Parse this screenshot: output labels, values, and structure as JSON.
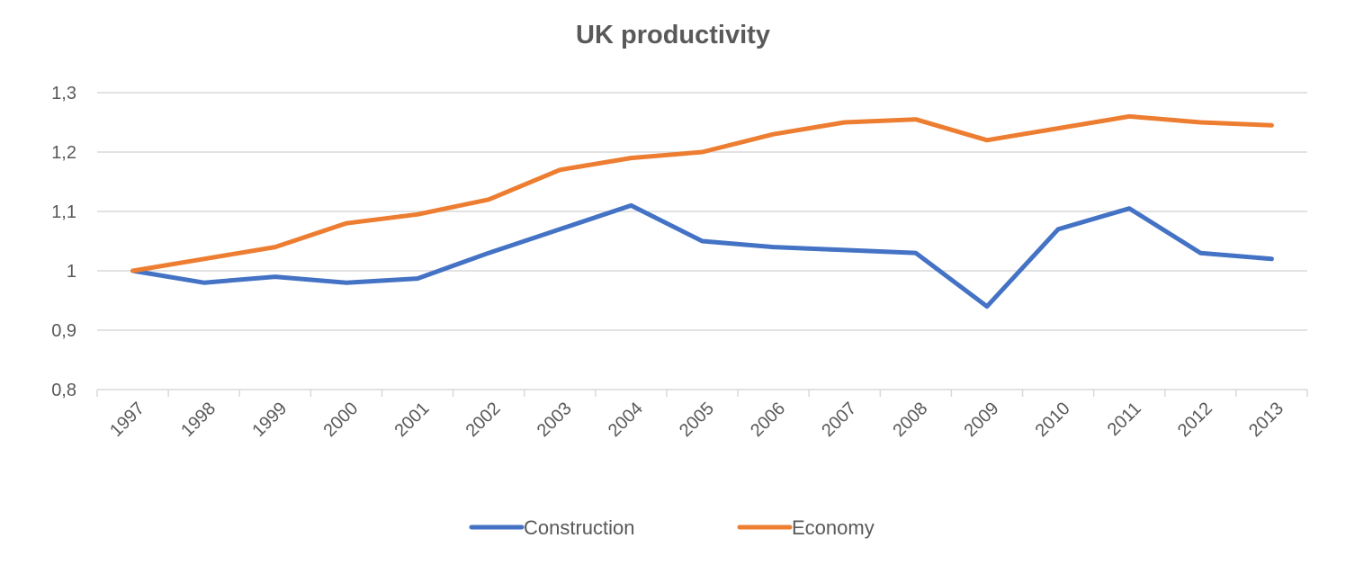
{
  "chart_data": {
    "type": "line",
    "title": "UK productivity",
    "xlabel": "",
    "ylabel": "",
    "categories": [
      "1997",
      "1998",
      "1999",
      "2000",
      "2001",
      "2002",
      "2003",
      "2004",
      "2005",
      "2006",
      "2007",
      "2008",
      "2009",
      "2010",
      "2011",
      "2012",
      "2013"
    ],
    "y_ticks": [
      0.8,
      0.9,
      1.0,
      1.1,
      1.2,
      1.3
    ],
    "y_tick_labels": [
      "0,8",
      "0,9",
      "1",
      "1,1",
      "1,2",
      "1,3"
    ],
    "ylim": [
      0.8,
      1.3
    ],
    "grid": true,
    "legend_position": "bottom",
    "series": [
      {
        "name": "Construction",
        "color": "#4472c4",
        "values": [
          1.0,
          0.98,
          0.99,
          0.98,
          0.987,
          1.03,
          1.07,
          1.11,
          1.05,
          1.04,
          1.035,
          1.03,
          0.94,
          1.07,
          1.105,
          1.03,
          1.02
        ]
      },
      {
        "name": "Economy",
        "color": "#ed7d31",
        "values": [
          1.0,
          1.02,
          1.04,
          1.08,
          1.095,
          1.12,
          1.17,
          1.19,
          1.2,
          1.23,
          1.25,
          1.255,
          1.22,
          1.24,
          1.26,
          1.25,
          1.245
        ]
      }
    ]
  }
}
